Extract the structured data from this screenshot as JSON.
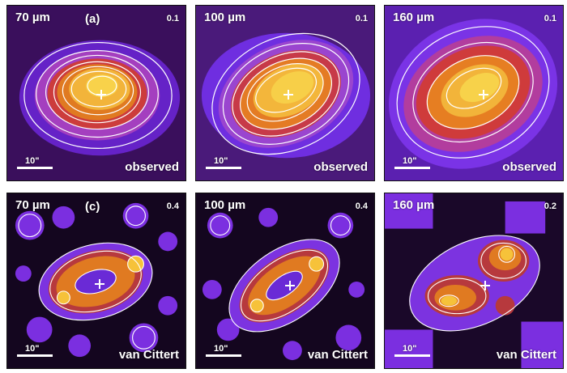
{
  "panels": [
    {
      "band": "70 µm",
      "tag": "(a)",
      "scale": "0.1",
      "kind": "observed",
      "scalebar": "10\""
    },
    {
      "band": "100 µm",
      "tag": "",
      "scale": "0.1",
      "kind": "observed",
      "scalebar": "10\""
    },
    {
      "band": "160 µm",
      "tag": "",
      "scale": "0.1",
      "kind": "observed",
      "scalebar": "10\""
    },
    {
      "band": "70 µm",
      "tag": "(c)",
      "scale": "0.4",
      "kind": "van Cittert",
      "scalebar": "10\""
    },
    {
      "band": "100 µm",
      "tag": "",
      "scale": "0.4",
      "kind": "van Cittert",
      "scalebar": "10\""
    },
    {
      "band": "160 µm",
      "tag": "",
      "scale": "0.2",
      "kind": "van Cittert",
      "scalebar": "10\""
    }
  ],
  "colors": {
    "bg": "#2a0a3c",
    "violet": "#7b2fe0",
    "purple": "#a44bd8",
    "red": "#c4323a",
    "orange": "#e97a1e",
    "yellow": "#f6c23a"
  }
}
